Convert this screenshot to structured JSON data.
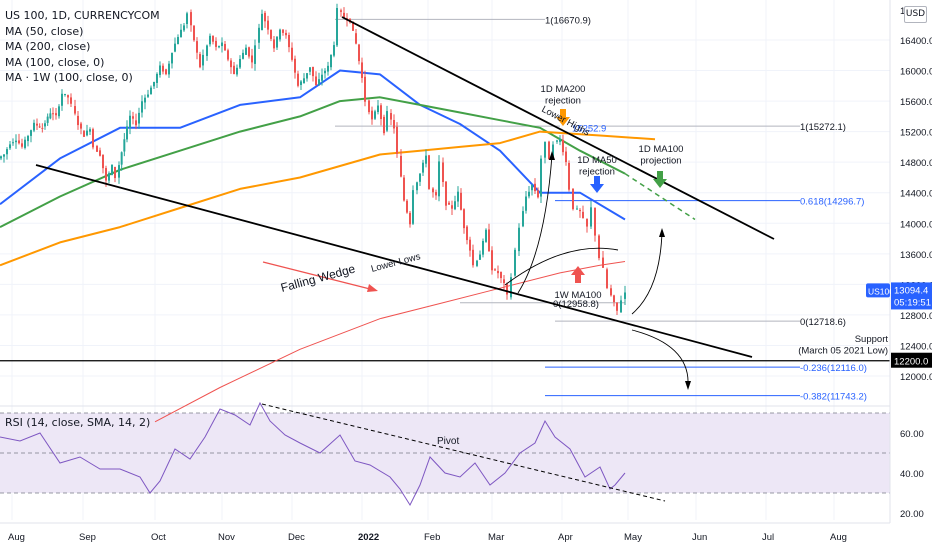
{
  "legend": {
    "symbol": "US 100, 1D, CURRENCYCOM",
    "ma_lines": [
      "MA (50, close)",
      "MA (200, close)",
      "MA (100, close, 0)",
      "MA · 1W (100, close, 0)"
    ],
    "rsi": "RSI (14, close, SMA, 14, 2)"
  },
  "currency_button": "USD",
  "colors": {
    "up": "#26a69a",
    "down": "#ef5350",
    "ma50": "#2962ff",
    "ma100": "#43a047",
    "ma200": "#ff9800",
    "ma1w": "#ef5350",
    "rsi_line": "#7e57c2",
    "rsi_band": "#ede7f6",
    "fib": "#2962ff",
    "wedge": "#000000"
  },
  "chart_data": {
    "type": "candlestick",
    "symbol": "US 100",
    "timeframe": "1D",
    "x_axis_labels": [
      "Aug",
      "Sep",
      "Oct",
      "Nov",
      "Dec",
      "2022",
      "Feb",
      "Mar",
      "Apr",
      "May",
      "Jun",
      "Jul",
      "Aug"
    ],
    "y_axis_ticks": [
      16400,
      16000,
      15600,
      15200,
      14800,
      14400,
      14000,
      13600,
      13200,
      12800,
      12400,
      12000
    ],
    "y_axis_partial_top": "16",
    "y_range": [
      11400,
      16900
    ],
    "current_price": {
      "label": "US100",
      "value": "13094.4",
      "countdown": "05:19:51"
    },
    "support_price_label": "12200.0",
    "candles_close_path": [
      [
        0,
        14850
      ],
      [
        6,
        14900
      ],
      [
        12,
        15050
      ],
      [
        18,
        15100
      ],
      [
        24,
        15000
      ],
      [
        30,
        15150
      ],
      [
        36,
        15300
      ],
      [
        44,
        15250
      ],
      [
        52,
        15450
      ],
      [
        58,
        15400
      ],
      [
        64,
        15700
      ],
      [
        70,
        15650
      ],
      [
        74,
        15550
      ],
      [
        80,
        15300
      ],
      [
        86,
        15150
      ],
      [
        92,
        15250
      ],
      [
        96,
        15000
      ],
      [
        102,
        14900
      ],
      [
        108,
        14550
      ],
      [
        114,
        14750
      ],
      [
        118,
        14600
      ],
      [
        126,
        15100
      ],
      [
        132,
        15400
      ],
      [
        138,
        15300
      ],
      [
        144,
        15600
      ],
      [
        150,
        15700
      ],
      [
        156,
        15850
      ],
      [
        162,
        16050
      ],
      [
        168,
        15950
      ],
      [
        174,
        16250
      ],
      [
        180,
        16450
      ],
      [
        186,
        16600
      ],
      [
        190,
        16750
      ],
      [
        196,
        16400
      ],
      [
        202,
        16050
      ],
      [
        206,
        16200
      ],
      [
        212,
        16450
      ],
      [
        218,
        16300
      ],
      [
        224,
        16350
      ],
      [
        230,
        16150
      ],
      [
        236,
        15950
      ],
      [
        242,
        16150
      ],
      [
        248,
        16300
      ],
      [
        254,
        16100
      ],
      [
        258,
        16350
      ],
      [
        264,
        16750
      ],
      [
        270,
        16550
      ],
      [
        276,
        16300
      ],
      [
        282,
        16550
      ],
      [
        288,
        16450
      ],
      [
        294,
        16150
      ],
      [
        300,
        15800
      ],
      [
        306,
        15900
      ],
      [
        312,
        16050
      ],
      [
        318,
        15800
      ],
      [
        324,
        15950
      ],
      [
        330,
        16050
      ],
      [
        336,
        16350
      ],
      [
        340,
        16800
      ],
      [
        346,
        16700
      ],
      [
        352,
        16650
      ],
      [
        358,
        16350
      ],
      [
        364,
        15900
      ],
      [
        368,
        15600
      ],
      [
        374,
        15350
      ],
      [
        380,
        15550
      ],
      [
        386,
        15200
      ],
      [
        390,
        15450
      ],
      [
        396,
        15250
      ],
      [
        400,
        14900
      ],
      [
        406,
        14300
      ],
      [
        412,
        14000
      ],
      [
        416,
        14450
      ],
      [
        422,
        14650
      ],
      [
        428,
        14900
      ],
      [
        432,
        14450
      ],
      [
        438,
        14350
      ],
      [
        442,
        14800
      ],
      [
        448,
        14250
      ],
      [
        454,
        14200
      ],
      [
        460,
        14400
      ],
      [
        466,
        13950
      ],
      [
        472,
        13650
      ],
      [
        476,
        13450
      ],
      [
        482,
        13600
      ],
      [
        488,
        13900
      ],
      [
        494,
        13400
      ],
      [
        500,
        13350
      ],
      [
        506,
        13200
      ],
      [
        510,
        13050
      ],
      [
        514,
        13300
      ],
      [
        518,
        13650
      ],
      [
        522,
        13950
      ],
      [
        528,
        14350
      ],
      [
        534,
        14500
      ],
      [
        540,
        14350
      ],
      [
        544,
        14850
      ],
      [
        548,
        15050
      ],
      [
        552,
        14850
      ],
      [
        556,
        15050
      ],
      [
        562,
        15100
      ],
      [
        568,
        14800
      ],
      [
        572,
        14450
      ],
      [
        576,
        14200
      ],
      [
        582,
        14150
      ],
      [
        586,
        14050
      ],
      [
        590,
        13950
      ],
      [
        594,
        14200
      ],
      [
        598,
        13850
      ],
      [
        602,
        13550
      ],
      [
        606,
        13400
      ],
      [
        610,
        13150
      ],
      [
        616,
        12950
      ],
      [
        620,
        12850
      ],
      [
        624,
        13000
      ],
      [
        628,
        13094
      ]
    ],
    "moving_averages": [
      {
        "name": "MA (50, close)",
        "points": [
          [
            0,
            14250
          ],
          [
            60,
            14850
          ],
          [
            120,
            15250
          ],
          [
            180,
            15250
          ],
          [
            240,
            15550
          ],
          [
            300,
            15650
          ],
          [
            340,
            16000
          ],
          [
            380,
            15950
          ],
          [
            420,
            15550
          ],
          [
            460,
            15300
          ],
          [
            500,
            14950
          ],
          [
            540,
            14400
          ],
          [
            580,
            14400
          ],
          [
            625,
            14050
          ]
        ]
      },
      {
        "name": "MA (100, close, 0)",
        "points": [
          [
            0,
            13950
          ],
          [
            60,
            14350
          ],
          [
            120,
            14700
          ],
          [
            180,
            14950
          ],
          [
            240,
            15200
          ],
          [
            300,
            15400
          ],
          [
            340,
            15600
          ],
          [
            380,
            15650
          ],
          [
            420,
            15550
          ],
          [
            460,
            15450
          ],
          [
            500,
            15350
          ],
          [
            540,
            15250
          ],
          [
            580,
            14950
          ],
          [
            625,
            14650
          ]
        ]
      },
      {
        "name": "MA (200, close)",
        "points": [
          [
            0,
            13450
          ],
          [
            60,
            13750
          ],
          [
            120,
            13950
          ],
          [
            180,
            14200
          ],
          [
            240,
            14450
          ],
          [
            300,
            14600
          ],
          [
            340,
            14750
          ],
          [
            380,
            14900
          ],
          [
            420,
            14950
          ],
          [
            460,
            15000
          ],
          [
            500,
            15050
          ],
          [
            540,
            15200
          ],
          [
            600,
            15150
          ],
          [
            655,
            15100
          ]
        ]
      },
      {
        "name": "MA · 1W (100, close, 0)",
        "points": [
          [
            155,
            11400
          ],
          [
            220,
            11850
          ],
          [
            300,
            12350
          ],
          [
            380,
            12750
          ],
          [
            440,
            12950
          ],
          [
            500,
            13150
          ],
          [
            560,
            13350
          ],
          [
            600,
            13450
          ],
          [
            625,
            13500
          ]
        ]
      }
    ],
    "fibonacci": [
      {
        "level": "1(16670.9)",
        "price": 16670.9,
        "y": 16670.9
      },
      {
        "level": "1(15272.1)",
        "price": 15272.1,
        "y": 15272.1
      },
      {
        "level": "0.618(14296.7)",
        "price": 14296.7,
        "y": 14296.7
      },
      {
        "level": "0(12718.6)",
        "price": 12718.6,
        "y": 12718.6
      },
      {
        "level": "-0.236(12116.0)",
        "price": 12116.0,
        "y": 12116.0
      },
      {
        "level": "-0.382(11743.2)",
        "price": 11743.2,
        "y": 11743.2
      }
    ],
    "small_fib_labels": [
      {
        "text": "0(12958.8)",
        "y": 12958.8
      },
      {
        "text": "15252.9",
        "y": 15252.9
      }
    ],
    "rsi": {
      "ticks": [
        60,
        40,
        20
      ],
      "overbought": 70,
      "oversold": 30,
      "values": [
        [
          0,
          58
        ],
        [
          20,
          56
        ],
        [
          40,
          60
        ],
        [
          60,
          45
        ],
        [
          80,
          48
        ],
        [
          100,
          42
        ],
        [
          120,
          42
        ],
        [
          140,
          38
        ],
        [
          150,
          30
        ],
        [
          160,
          36
        ],
        [
          175,
          52
        ],
        [
          190,
          47
        ],
        [
          205,
          58
        ],
        [
          220,
          72
        ],
        [
          235,
          69
        ],
        [
          250,
          64
        ],
        [
          260,
          75
        ],
        [
          270,
          66
        ],
        [
          285,
          59
        ],
        [
          300,
          55
        ],
        [
          320,
          50
        ],
        [
          340,
          59
        ],
        [
          355,
          46
        ],
        [
          370,
          44
        ],
        [
          390,
          38
        ],
        [
          400,
          32
        ],
        [
          410,
          24
        ],
        [
          420,
          34
        ],
        [
          430,
          48
        ],
        [
          445,
          40
        ],
        [
          460,
          38
        ],
        [
          475,
          45
        ],
        [
          490,
          34
        ],
        [
          505,
          40
        ],
        [
          520,
          50
        ],
        [
          535,
          55
        ],
        [
          545,
          66
        ],
        [
          555,
          58
        ],
        [
          570,
          52
        ],
        [
          585,
          38
        ],
        [
          600,
          43
        ],
        [
          610,
          32
        ],
        [
          615,
          34
        ],
        [
          625,
          40
        ]
      ]
    },
    "annotations": {
      "falling_wedge": "Falling Wedge",
      "lower_lows": "Lower Lows",
      "lower_highs": "Lower Highs",
      "ma200_rejection": "1D MA200\nrejection",
      "ma50_rejection": "1D MA50\nrejection",
      "ma100_projection": "1D MA100\nprojection",
      "w_ma100": "1W MA100",
      "support": "Support\n(March 05 2021 Low)",
      "pivot": "Pivot"
    }
  }
}
